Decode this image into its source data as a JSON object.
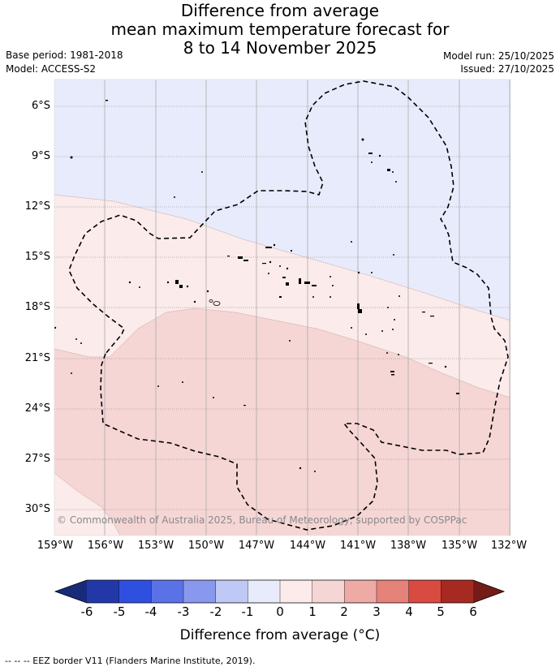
{
  "title": {
    "line1": "Difference from average",
    "line2": "mean maximum temperature forecast for",
    "line3": "8 to 14 November 2025"
  },
  "meta": {
    "base_period": "Base period: 1981-2018",
    "model": "Model: ACCESS-S2",
    "model_run": "Model run: 25/10/2025",
    "issued": "Issued: 27/10/2025"
  },
  "map": {
    "extent": {
      "lon": [
        "159°W",
        "132°W"
      ],
      "lat": [
        "5°S",
        "32°S"
      ]
    },
    "lon_labels": [
      "159°W",
      "156°W",
      "153°W",
      "150°W",
      "147°W",
      "144°W",
      "141°W",
      "138°W",
      "135°W",
      "132°W"
    ],
    "lat_labels": [
      "6°S",
      "9°S",
      "12°S",
      "15°S",
      "18°S",
      "21°S",
      "24°S",
      "27°S",
      "30°S"
    ],
    "anomaly_zones": [
      {
        "range": "-1 to 0",
        "color": "#e8ebfb",
        "location": "north-east"
      },
      {
        "range": "0 to 1",
        "color": "#fbebea",
        "location": "central band and south-west corner"
      },
      {
        "range": "1 to 2",
        "color": "#f5d6d5",
        "location": "south"
      }
    ],
    "grid": true,
    "eez_border_style": "dashed",
    "copyright": "© Commonwealth of Australia 2025, Bureau of Meteorology, supported by COSPPac"
  },
  "colorbar": {
    "labels": [
      "-6",
      "-5",
      "-4",
      "-3",
      "-2",
      "-1",
      "0",
      "1",
      "2",
      "3",
      "4",
      "5",
      "6"
    ],
    "colors": [
      "#2338a8",
      "#2f4fe0",
      "#5a72e6",
      "#8898ee",
      "#c0c8f6",
      "#e8ebfb",
      "#fbebea",
      "#f5d6d5",
      "#efaaa6",
      "#e5827a",
      "#d94a40",
      "#a72a22"
    ],
    "under_color": "#182a7a",
    "over_color": "#741c17",
    "title": "Difference from average (°C)"
  },
  "footer": {
    "legend": "--  --  -- EEZ border V11 (Flanders Marine Institute, 2019)."
  }
}
